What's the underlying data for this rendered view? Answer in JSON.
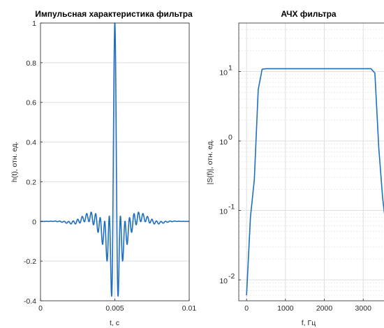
{
  "colors": {
    "line": "#1f6fbf",
    "axes": "#262626",
    "grid": "#dfdfdf"
  },
  "chart_data": [
    {
      "type": "line",
      "title": "Импульсная характеристика фильтра",
      "xlabel": "t, с",
      "ylabel": "h(t), отн. ед.",
      "xlim": [
        0,
        0.01
      ],
      "ylim": [
        -0.4,
        1
      ],
      "xticks": [
        0,
        0.005,
        0.01
      ],
      "xtick_labels": [
        "0",
        "0.005",
        "0.01"
      ],
      "yticks": [
        -0.4,
        -0.2,
        0,
        0.2,
        0.4,
        0.6,
        0.8,
        1
      ],
      "ytick_labels": [
        "-0.4",
        "-0.2",
        "0",
        "0.2",
        "0.4",
        "0.6",
        "0.8",
        "1"
      ],
      "grid": true,
      "series": [
        {
          "model": "sinc-bandpass",
          "center": 0.005,
          "f_low": 400,
          "f_high": 3300,
          "gain": 1.0,
          "n_points": 1400,
          "x_range": [
            0,
            0.01
          ]
        }
      ]
    },
    {
      "type": "line",
      "title": "АЧХ фильтра",
      "xlabel": "f, Гц",
      "ylabel": "|S(f)|, отн. ед.",
      "xlim": [
        -200,
        3750
      ],
      "ylim": [
        0.005,
        50
      ],
      "yscale": "log",
      "xticks": [
        0,
        1000,
        2000,
        3000
      ],
      "xtick_labels": [
        "0",
        "1000",
        "2000",
        "3000"
      ],
      "yticks": [
        0.01,
        0.1,
        1,
        10
      ],
      "ytick_labels": [
        "10",
        "10",
        "10",
        "10"
      ],
      "ytick_exponents": [
        "-2",
        "-1",
        "0",
        "1"
      ],
      "grid": true,
      "series": [
        {
          "x": [
            0,
            100,
            200,
            300,
            400,
            500,
            3100,
            3200,
            3300,
            3400,
            3500,
            3600,
            3700
          ],
          "y": [
            0.006,
            0.08,
            0.28,
            5.5,
            10.8,
            11.0,
            11.0,
            11.0,
            9.5,
            0.8,
            0.15,
            0.05,
            0.02
          ]
        }
      ]
    }
  ]
}
